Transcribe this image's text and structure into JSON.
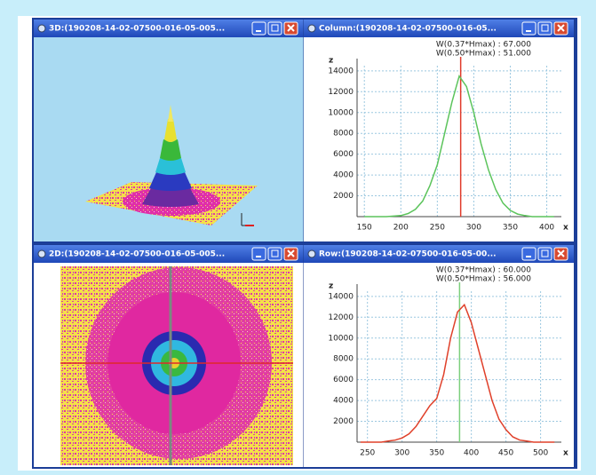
{
  "windows": [
    {
      "title": "3D:(190208-14-02-07500-016-05-005..."
    },
    {
      "title": "Column:(190208-14-02-07500-016-05...",
      "chart": {
        "type": "line",
        "ylabel": "z",
        "xlabel": "x",
        "annotations": [
          "W(0.37*Hmax) : 67.000",
          "W(0.50*Hmax) : 51.000"
        ],
        "x": [
          150,
          160,
          170,
          180,
          190,
          200,
          210,
          220,
          230,
          240,
          250,
          260,
          270,
          280,
          290,
          300,
          310,
          320,
          330,
          340,
          350,
          360,
          370,
          380,
          390,
          400,
          410
        ],
        "series": [
          {
            "color": "#5cc45c",
            "values": [
              0,
              0,
              0,
              0,
              50,
              100,
              300,
              700,
              1500,
              3000,
              5000,
              8000,
              11000,
              13500,
              12500,
              10000,
              7000,
              4500,
              2600,
              1300,
              600,
              250,
              100,
              0,
              0,
              0,
              0
            ]
          }
        ],
        "marker": {
          "x": 282,
          "color": "#e03a2a"
        },
        "xlim": [
          140,
          420
        ],
        "ylim": [
          0,
          14500
        ],
        "xticks": [
          150,
          200,
          250,
          300,
          350,
          400
        ],
        "yticks": [
          2000,
          4000,
          6000,
          8000,
          10000,
          12000,
          14000
        ],
        "grid": true
      }
    },
    {
      "title": "2D:(190208-14-02-07500-016-05-005..."
    },
    {
      "title": "Row:(190208-14-02-07500-016-05-00...",
      "chart": {
        "type": "line",
        "ylabel": "z",
        "xlabel": "x",
        "annotations": [
          "W(0.37*Hmax) : 60.000",
          "W(0.50*Hmax) : 56.000"
        ],
        "x": [
          240,
          250,
          260,
          270,
          280,
          290,
          300,
          310,
          320,
          330,
          340,
          350,
          360,
          370,
          380,
          390,
          400,
          410,
          420,
          430,
          440,
          450,
          460,
          470,
          480,
          490,
          500,
          510,
          520
        ],
        "series": [
          {
            "color": "#e0402a",
            "values": [
              0,
              0,
              0,
              0,
              100,
              200,
              400,
              800,
              1500,
              2500,
              3500,
              4200,
              6500,
              10000,
              12500,
              13200,
              11500,
              9000,
              6500,
              4000,
              2200,
              1200,
              500,
              200,
              100,
              0,
              0,
              0,
              0
            ]
          }
        ],
        "marker": {
          "x": 383,
          "color": "#7ccf7c"
        },
        "xlim": [
          235,
          530
        ],
        "ylim": [
          0,
          14500
        ],
        "xticks": [
          250,
          300,
          350,
          400,
          450,
          500
        ],
        "yticks": [
          2000,
          4000,
          6000,
          8000,
          10000,
          12000,
          14000
        ],
        "grid": true
      }
    }
  ]
}
